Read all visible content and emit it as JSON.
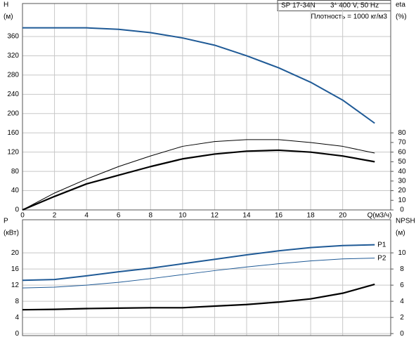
{
  "chart_data": [
    {
      "type": "line",
      "annotations": [
        "SP 17-34N",
        "3* 400 V, 50 Hz",
        "Плотность = 1000 кг/м3"
      ],
      "ylabel": [
        "H",
        "(м)"
      ],
      "y2label": [
        "eta",
        "(%)"
      ],
      "xlabel": "Q(м3/ч)",
      "x": [
        0,
        2,
        4,
        6,
        8,
        10,
        12,
        14,
        16,
        18,
        20,
        22
      ],
      "xlim": [
        0,
        23
      ],
      "xticks": [
        0,
        2,
        4,
        6,
        8,
        10,
        12,
        14,
        16,
        18,
        20
      ],
      "xtick_labels": true,
      "ylim": [
        0,
        428.5
      ],
      "yticks": [
        0,
        40,
        80,
        120,
        160,
        200,
        240,
        280,
        320,
        360
      ],
      "y2lim": [
        0,
        214.25
      ],
      "y2ticks": [
        0,
        10,
        20,
        30,
        40,
        50,
        60,
        70,
        80
      ],
      "grid": true,
      "series": [
        {
          "color": "#1f5a96",
          "width": 2,
          "axis": "y",
          "values": [
            378,
            378,
            378,
            375,
            368,
            357,
            342,
            320,
            295,
            265,
            228,
            180
          ]
        },
        {
          "color": "#000000",
          "width": 1,
          "axis": "y2",
          "values": [
            0,
            17.5,
            32,
            45,
            56,
            66,
            71,
            73,
            73,
            70,
            66,
            59
          ]
        },
        {
          "color": "#000000",
          "width": 2.2,
          "axis": "y2",
          "values": [
            0,
            14,
            27,
            36,
            45,
            53,
            58,
            61,
            62,
            60,
            56,
            50
          ]
        }
      ]
    },
    {
      "type": "line",
      "ylabel": [
        "P",
        "(кВт)"
      ],
      "y2label": [
        "NPSH",
        "(м)"
      ],
      "x": [
        0,
        2,
        4,
        6,
        8,
        10,
        12,
        14,
        16,
        18,
        20,
        22
      ],
      "xlim": [
        0,
        23
      ],
      "xticks": [
        0,
        2,
        4,
        6,
        8,
        10,
        12,
        14,
        16,
        18,
        20
      ],
      "xtick_labels": false,
      "ylim": [
        -0.5,
        28.2
      ],
      "yticks": [
        0,
        4,
        8,
        12,
        16,
        20
      ],
      "y2lim": [
        -0.25,
        14.1
      ],
      "y2ticks": [
        0,
        2,
        4,
        6,
        8,
        10
      ],
      "grid": true,
      "series": [
        {
          "name": "P1",
          "color": "#1f5a96",
          "width": 2,
          "axis": "y",
          "values": [
            13.2,
            13.4,
            14.3,
            15.3,
            16.2,
            17.3,
            18.4,
            19.5,
            20.5,
            21.3,
            21.8,
            22.0
          ]
        },
        {
          "name": "P2",
          "color": "#1f5a96",
          "width": 1,
          "axis": "y",
          "values": [
            11.3,
            11.5,
            12.0,
            12.7,
            13.6,
            14.6,
            15.6,
            16.5,
            17.3,
            18.0,
            18.5,
            18.7
          ]
        },
        {
          "color": "#000000",
          "width": 2.2,
          "axis": "y2",
          "values": [
            2.95,
            3.0,
            3.1,
            3.15,
            3.2,
            3.2,
            3.4,
            3.6,
            3.9,
            4.3,
            5.0,
            6.1
          ]
        }
      ]
    }
  ]
}
